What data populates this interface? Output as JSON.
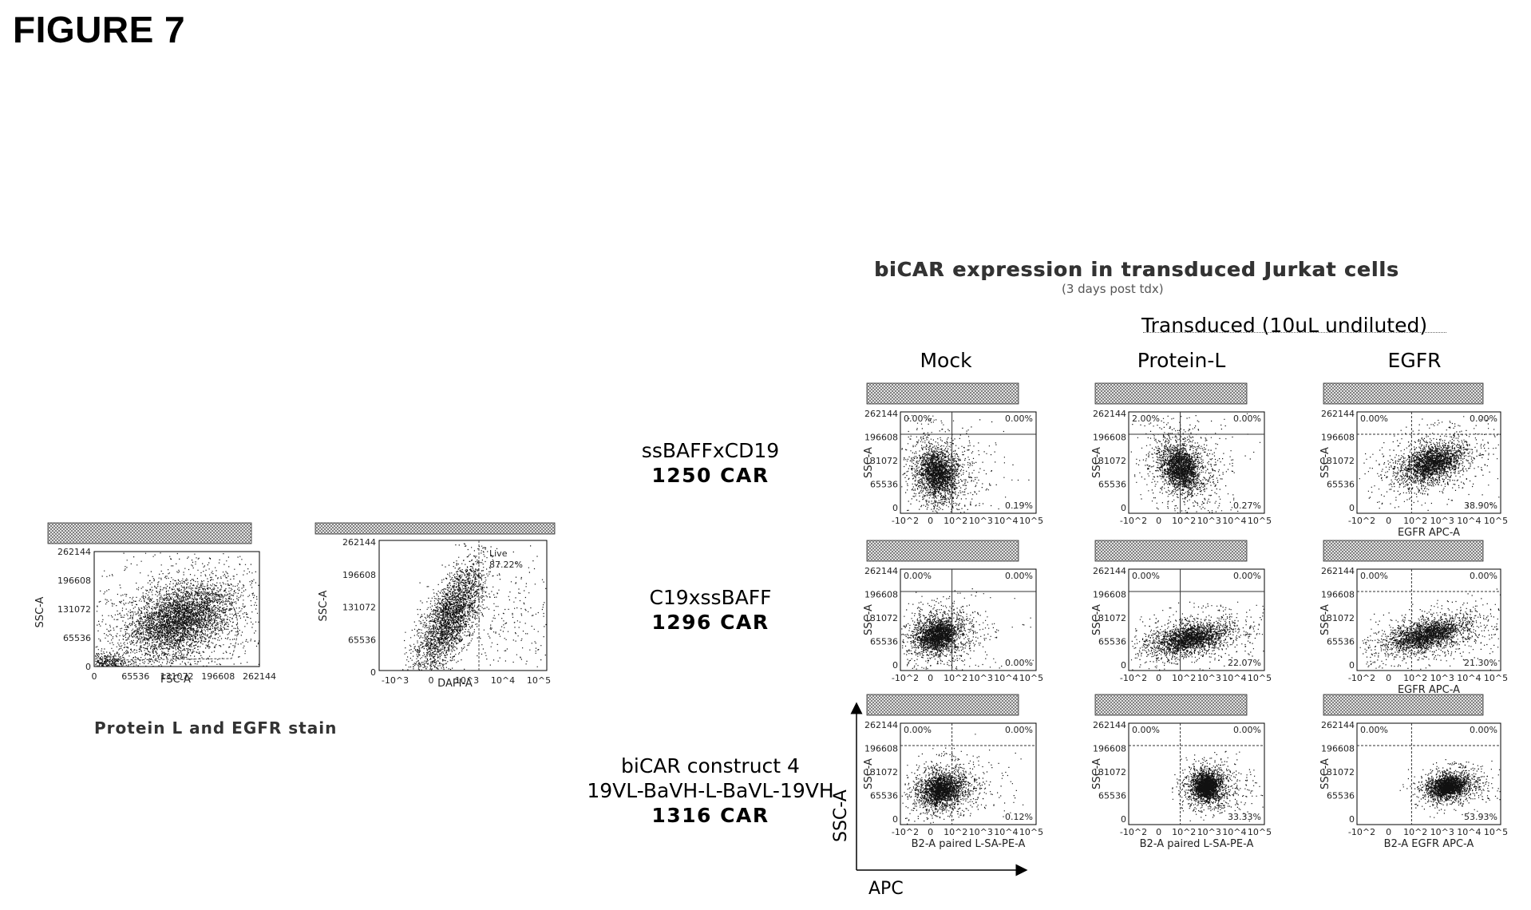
{
  "figure": {
    "title": "FIGURE 7"
  },
  "header": {
    "title": "biCAR expression in transduced Jurkat cells",
    "subtitle": "(3 days post tdx)",
    "transduced_label": "Transduced (10uL undiluted)"
  },
  "columns": {
    "mock": "Mock",
    "protein_l": "Protein-L",
    "egfr": "EGFR"
  },
  "rows": [
    {
      "line1": "ssBAFFxCD19",
      "line2": "",
      "bold": "1250 CAR"
    },
    {
      "line1": "C19xssBAFF",
      "line2": "",
      "bold": "1296 CAR"
    },
    {
      "line1": "biCAR construct 4",
      "line2": "19VL-BaVH-L-BaVL-19VH",
      "bold": "1316 CAR"
    }
  ],
  "left_panel": {
    "caption": "Protein L and EGFR stain",
    "plot1": {
      "ylabel": "SSC-A",
      "xlabel": "FSC-A",
      "yticks": [
        "262144",
        "196608",
        "131072",
        "65536",
        "0"
      ],
      "xticks": [
        "0",
        "65536",
        "131072",
        "196608",
        "262144"
      ]
    },
    "plot2": {
      "ylabel": "SSC-A",
      "xlabel": "DAPI-A",
      "gate_label": "Live",
      "gate_value": "87.22%",
      "yticks": [
        "262144",
        "196608",
        "131072",
        "65536",
        "0"
      ],
      "xticks": [
        "-10^3",
        "0",
        "10^3",
        "10^4",
        "10^5"
      ]
    }
  },
  "grid_values": [
    [
      "0.00%",
      "0.00%",
      "0.19%"
    ],
    [
      "2.00%",
      "0.00%",
      "0.27%"
    ],
    [
      "0.00%",
      "0.00%",
      "38.90%"
    ],
    [
      "0.00%",
      "0.00%",
      "0.00%"
    ],
    [
      "0.00%",
      "0.00%",
      "22.07%"
    ],
    [
      "0.00%",
      "0.00%",
      "21.30%"
    ],
    [
      "0.00%",
      "0.00%",
      "0.12%"
    ],
    [
      "0.00%",
      "0.00%",
      "33.33%"
    ],
    [
      "0.00%",
      "0.00%",
      "53.93%"
    ]
  ],
  "grid_xlabels": [
    "",
    "",
    "EGFR APC-A",
    "",
    "",
    "EGFR APC-A",
    "B2-A paired L-SA-PE-A",
    "B2-A paired L-SA-PE-A",
    "B2-A EGFR APC-A"
  ],
  "axis_legend": {
    "y": "SSC-A",
    "x": "APC"
  }
}
